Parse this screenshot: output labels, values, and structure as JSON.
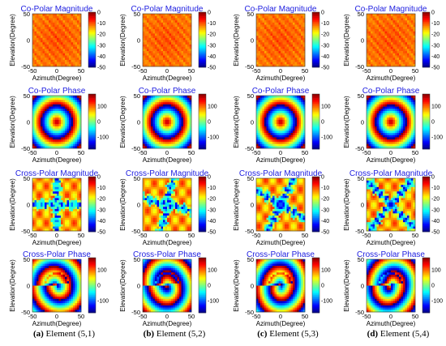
{
  "colormap": "jet",
  "columns": [
    {
      "caption_letter": "(a)",
      "caption_text": "Element (5,1)"
    },
    {
      "caption_letter": "(b)",
      "caption_text": "Element (5,2)"
    },
    {
      "caption_letter": "(c)",
      "caption_text": "Element (5,3)"
    },
    {
      "caption_letter": "(d)",
      "caption_text": "Element (5,4)"
    }
  ],
  "chart_data": [
    {
      "type": "heatmap",
      "title": "Co-Polar Magnitude",
      "xlabel": "Azimuth(Degree)",
      "ylabel": "Elevation(Degree)",
      "xlim": [
        -50,
        50
      ],
      "ylim": [
        -50,
        50
      ],
      "xticks": [
        -50,
        0,
        50
      ],
      "yticks": [
        -50,
        0,
        50
      ],
      "clim": [
        -50,
        0
      ],
      "cbar_ticks": [
        0,
        -10,
        -20,
        -30,
        -40,
        -50
      ],
      "pattern": "copolar-magnitude",
      "value_range": [
        -10,
        -3
      ]
    },
    {
      "type": "heatmap",
      "title": "Co-Polar Phase",
      "xlabel": "Azimuth(Degree)",
      "ylabel": "Elevation(Degree)",
      "xlim": [
        -50,
        50
      ],
      "ylim": [
        -50,
        50
      ],
      "xticks": [
        -50,
        0,
        50
      ],
      "yticks": [
        -50,
        0,
        50
      ],
      "clim": [
        -180,
        180
      ],
      "cbar_ticks": [
        100,
        0,
        -100
      ],
      "pattern": "copolar-phase-concentric-rings"
    },
    {
      "type": "heatmap",
      "title": "Cross-Polar Magnitude",
      "xlabel": "Azimuth(Degree)",
      "ylabel": "Elevation(Degree)",
      "xlim": [
        -50,
        50
      ],
      "ylim": [
        -50,
        50
      ],
      "xticks": [
        -50,
        0,
        50
      ],
      "yticks": [
        -50,
        0,
        50
      ],
      "clim": [
        -50,
        0
      ],
      "cbar_ticks": [
        0,
        -10,
        -20,
        -30,
        -40,
        -50
      ],
      "pattern": "crosspolar-magnitude-cross-shaped-nulls"
    },
    {
      "type": "heatmap",
      "title": "Cross-Polar Phase",
      "xlabel": "Azimuth(Degree)",
      "ylabel": "Elevation(Degree)",
      "xlim": [
        -50,
        50
      ],
      "ylim": [
        -50,
        50
      ],
      "xticks": [
        -50,
        0,
        50
      ],
      "yticks": [
        -50,
        0,
        50
      ],
      "clim": [
        -180,
        180
      ],
      "cbar_ticks": [
        100,
        0,
        -100
      ],
      "pattern": "crosspolar-phase-swirled-rings"
    }
  ]
}
